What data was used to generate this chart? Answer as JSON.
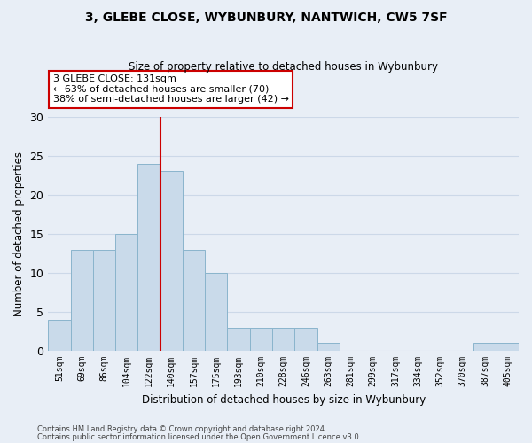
{
  "title": "3, GLEBE CLOSE, WYBUNBURY, NANTWICH, CW5 7SF",
  "subtitle": "Size of property relative to detached houses in Wybunbury",
  "xlabel": "Distribution of detached houses by size in Wybunbury",
  "ylabel": "Number of detached properties",
  "bar_labels": [
    "51sqm",
    "69sqm",
    "86sqm",
    "104sqm",
    "122sqm",
    "140sqm",
    "157sqm",
    "175sqm",
    "193sqm",
    "210sqm",
    "228sqm",
    "246sqm",
    "263sqm",
    "281sqm",
    "299sqm",
    "317sqm",
    "334sqm",
    "352sqm",
    "370sqm",
    "387sqm",
    "405sqm"
  ],
  "bar_heights": [
    4,
    13,
    13,
    15,
    24,
    23,
    13,
    10,
    3,
    3,
    3,
    3,
    1,
    0,
    0,
    0,
    0,
    0,
    0,
    1,
    1
  ],
  "bar_color": "#c9daea",
  "bar_edgecolor": "#8ab4cc",
  "highlight_line_idx": 5,
  "highlight_line_color": "#cc0000",
  "ylim": [
    0,
    30
  ],
  "yticks": [
    0,
    5,
    10,
    15,
    20,
    25,
    30
  ],
  "annotation_text": "3 GLEBE CLOSE: 131sqm\n← 63% of detached houses are smaller (70)\n38% of semi-detached houses are larger (42) →",
  "annotation_box_facecolor": "#ffffff",
  "annotation_box_edgecolor": "#cc0000",
  "footer_line1": "Contains HM Land Registry data © Crown copyright and database right 2024.",
  "footer_line2": "Contains public sector information licensed under the Open Government Licence v3.0.",
  "grid_color": "#ccd8e8",
  "bg_color": "#e8eef6"
}
